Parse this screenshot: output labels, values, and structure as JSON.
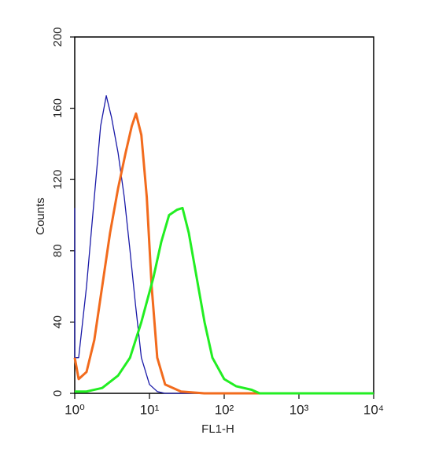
{
  "chart_data": {
    "type": "line",
    "xscale": "log",
    "xlabel": "FL1-H",
    "ylabel": "Counts",
    "xlim": [
      1,
      10000
    ],
    "ylim": [
      0,
      200
    ],
    "xticks": [
      {
        "value": 1,
        "label": "10⁰"
      },
      {
        "value": 10,
        "label": "10¹"
      },
      {
        "value": 100,
        "label": "10²"
      },
      {
        "value": 1000,
        "label": "10³"
      },
      {
        "value": 10000,
        "label": "10⁴"
      }
    ],
    "yticks": [
      0,
      40,
      80,
      120,
      160,
      200
    ],
    "series": [
      {
        "color": "#1a1aa8",
        "x": [
          1,
          1,
          1.13,
          1.44,
          1.83,
          2.22,
          2.64,
          3.1,
          3.8,
          4.6,
          5.5,
          6.5,
          7.8,
          10,
          12.7,
          16.2,
          10000
        ],
        "values": [
          104,
          20,
          20,
          60,
          110,
          150,
          167,
          155,
          135,
          110,
          80,
          50,
          20,
          5,
          1,
          0,
          0
        ]
      },
      {
        "color": "#f26b1d",
        "x": [
          1,
          1.13,
          1.44,
          1.83,
          2.33,
          2.97,
          3.8,
          4.8,
          5.8,
          6.6,
          7.8,
          9.2,
          10.7,
          12.7,
          16.2,
          26.4,
          54,
          10000
        ],
        "values": [
          20,
          8,
          12,
          30,
          60,
          90,
          115,
          135,
          150,
          157,
          145,
          110,
          60,
          20,
          5,
          1,
          0,
          0
        ]
      },
      {
        "color": "#22ee22",
        "x": [
          1,
          1.44,
          2.33,
          3.8,
          5.5,
          7.8,
          11.3,
          14.4,
          18.3,
          23.3,
          27.7,
          33.6,
          42.8,
          54.6,
          69.5,
          100,
          144,
          233,
          298,
          10000
        ],
        "values": [
          1,
          1,
          3,
          10,
          20,
          40,
          65,
          85,
          100,
          103,
          104,
          90,
          65,
          40,
          20,
          8,
          4,
          2,
          0,
          0
        ]
      }
    ]
  }
}
